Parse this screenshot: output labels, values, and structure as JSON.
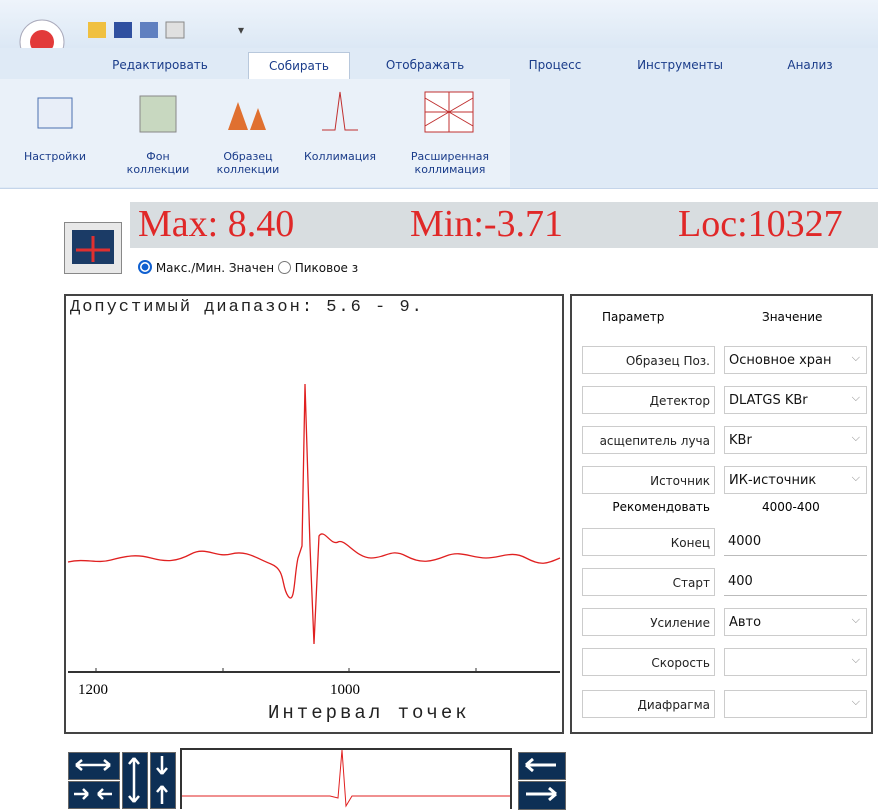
{
  "tabs": [
    "Редактировать",
    "Собирать",
    "Отображать",
    "Процесс",
    "Инструменты",
    "Анализ"
  ],
  "ribbon": [
    [
      "Настройки"
    ],
    [
      "Фон",
      "коллекции"
    ],
    [
      "Образец",
      "коллекции"
    ],
    [
      "Коллимация"
    ],
    [
      "Расширенная",
      "коллимация"
    ]
  ],
  "readout": {
    "max": "Max: 8.40",
    "min": "Min:-3.71",
    "loc": "Loc:10327"
  },
  "radio": [
    "Макс./Мин. Значен",
    "Пиковое з"
  ],
  "plot": {
    "title": "Допустимый диапазон: 5.6 - 9.",
    "x_labels": [
      "1200",
      "1000"
    ],
    "x_axis_label": "Интервал точек"
  },
  "params": {
    "header": [
      "Параметр",
      "Значение"
    ],
    "rows": [
      {
        "label": "Образец Поз.",
        "value": "Основное хран"
      },
      {
        "label": "Детектор",
        "value": "DLATGS KBr"
      },
      {
        "label": "асщепитель луча",
        "value": "KBr"
      },
      {
        "label": "Источник",
        "value": "ИК-источник"
      },
      {
        "label": "Рекомендовать",
        "value": "4000-400"
      },
      {
        "label": "Конец",
        "value": "4000"
      },
      {
        "label": "Старт",
        "value": "400"
      },
      {
        "label": "Усиление",
        "value": "Авто"
      },
      {
        "label": "Скорость"
      },
      {
        "label": "Диафрагма"
      }
    ]
  }
}
